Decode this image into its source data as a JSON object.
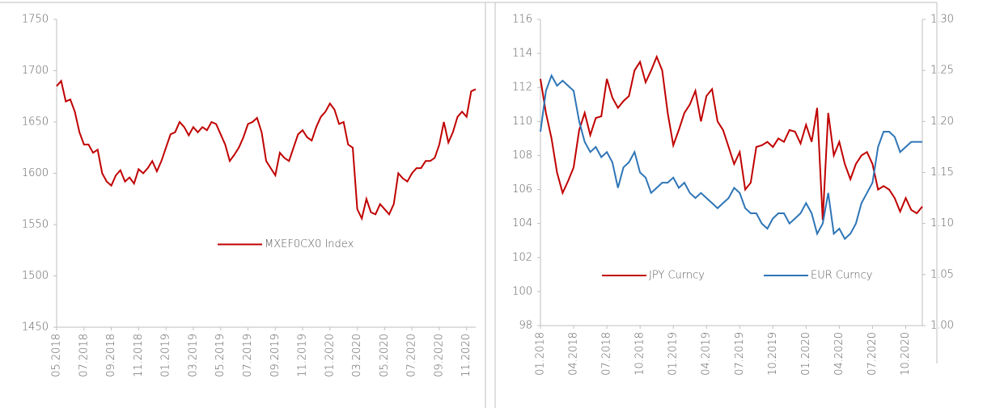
{
  "chart_data": [
    {
      "type": "line",
      "categories": [
        "05.2018",
        null,
        null,
        null,
        null,
        null,
        "07.2018",
        null,
        null,
        null,
        null,
        null,
        "09.2018",
        null,
        null,
        null,
        null,
        null,
        "11.2018",
        null,
        null,
        null,
        null,
        null,
        "01.2019",
        null,
        null,
        null,
        null,
        null,
        "03.2019",
        null,
        null,
        null,
        null,
        null,
        "05.2019",
        null,
        null,
        null,
        null,
        null,
        "07.2019",
        null,
        null,
        null,
        null,
        null,
        "09.2019",
        null,
        null,
        null,
        null,
        null,
        "11.2019",
        null,
        null,
        null,
        null,
        null,
        "01.2020",
        null,
        null,
        null,
        null,
        null,
        "03.2020",
        null,
        null,
        null,
        null,
        null,
        "05.2020",
        null,
        null,
        null,
        null,
        null,
        "07.2020",
        null,
        null,
        null,
        null,
        null,
        "09.2020",
        null,
        null,
        null,
        null,
        null,
        "11.2020",
        null,
        null
      ],
      "series": [
        {
          "name": "MXEF0CX0 Index",
          "color": "#c00000",
          "values": [
            1685,
            1690,
            1670,
            1672,
            1660,
            1640,
            1628,
            1628,
            1620,
            1623,
            1600,
            1592,
            1588,
            1598,
            1603,
            1592,
            1596,
            1590,
            1604,
            1600,
            1605,
            1612,
            1602,
            1612,
            1625,
            1638,
            1640,
            1650,
            1645,
            1637,
            1645,
            1640,
            1645,
            1642,
            1650,
            1648,
            1638,
            1628,
            1612,
            1618,
            1625,
            1635,
            1648,
            1650,
            1654,
            1640,
            1612,
            1605,
            1598,
            1620,
            1615,
            1612,
            1625,
            1638,
            1642,
            1635,
            1632,
            1645,
            1655,
            1660,
            1668,
            1662,
            1648,
            1650,
            1628,
            1625,
            1565,
            1556,
            1575,
            1562,
            1560,
            1570,
            1565,
            1560,
            1570,
            1600,
            1595,
            1592,
            1600,
            1605,
            1605,
            1612,
            1612,
            1615,
            1628,
            1650,
            1630,
            1640,
            1655,
            1660,
            1655,
            1680,
            1682
          ]
        }
      ],
      "ylim": [
        1450,
        1750
      ],
      "yticks": [
        1450,
        1500,
        1550,
        1600,
        1650,
        1700,
        1750
      ],
      "legend": "center"
    },
    {
      "type": "line",
      "categories": [
        "01.2018",
        null,
        null,
        null,
        null,
        null,
        "04.2018",
        null,
        null,
        null,
        null,
        null,
        "07.2018",
        null,
        null,
        null,
        null,
        null,
        "10.2018",
        null,
        null,
        null,
        null,
        null,
        "01.2019",
        null,
        null,
        null,
        null,
        null,
        "04.2019",
        null,
        null,
        null,
        null,
        null,
        "07.2019",
        null,
        null,
        null,
        null,
        null,
        "10.2019",
        null,
        null,
        null,
        null,
        null,
        "01.2020",
        null,
        null,
        null,
        null,
        null,
        "04.2020",
        null,
        null,
        null,
        null,
        null,
        "07.2020",
        null,
        null,
        null,
        null,
        null,
        "10.2020",
        null,
        null,
        null
      ],
      "series": [
        {
          "name": "JPY Curncy",
          "color": "#c00000",
          "axis": "y",
          "values": [
            112.5,
            110.5,
            109,
            107,
            105.8,
            106.5,
            107.3,
            109.5,
            110.5,
            109.2,
            110.2,
            110.3,
            112.5,
            111.4,
            110.8,
            111.2,
            111.5,
            113,
            113.5,
            112.3,
            113,
            113.8,
            113,
            110.5,
            108.6,
            109.5,
            110.5,
            111,
            111.8,
            110,
            111.5,
            111.9,
            110,
            109.5,
            108.5,
            107.5,
            108.2,
            106,
            106.4,
            108.5,
            108.6,
            108.8,
            108.5,
            109,
            108.8,
            109.5,
            109.4,
            108.7,
            109.8,
            108.8,
            110.8,
            104.2,
            110.5,
            108,
            108.8,
            107.5,
            106.6,
            107.5,
            108,
            108.2,
            107.5,
            106,
            106.2,
            106,
            105.5,
            104.7,
            105.5,
            104.8,
            104.6,
            105
          ]
        },
        {
          "name": "EUR Curncy",
          "color": "#2e75b6",
          "axis": "y2",
          "values": [
            1.19,
            1.23,
            1.245,
            1.235,
            1.24,
            1.235,
            1.23,
            1.2,
            1.18,
            1.17,
            1.175,
            1.165,
            1.17,
            1.16,
            1.135,
            1.155,
            1.16,
            1.17,
            1.15,
            1.145,
            1.13,
            1.135,
            1.14,
            1.14,
            1.145,
            1.135,
            1.14,
            1.13,
            1.125,
            1.13,
            1.125,
            1.12,
            1.115,
            1.12,
            1.125,
            1.135,
            1.13,
            1.115,
            1.11,
            1.11,
            1.1,
            1.095,
            1.105,
            1.11,
            1.11,
            1.1,
            1.105,
            1.11,
            1.12,
            1.11,
            1.09,
            1.1,
            1.13,
            1.09,
            1.095,
            1.085,
            1.09,
            1.1,
            1.12,
            1.13,
            1.14,
            1.175,
            1.19,
            1.19,
            1.185,
            1.17,
            1.175,
            1.18,
            1.18,
            1.18
          ]
        }
      ],
      "ylim": [
        98,
        116
      ],
      "yticks": [
        98,
        100,
        102,
        104,
        106,
        108,
        110,
        112,
        114,
        116
      ],
      "y2lim": [
        1.0,
        1.3
      ],
      "y2ticks": [
        {
          "value": 1,
          "label": "1.00"
        },
        1.05,
        {
          "value": 1.1,
          "label": "1.10"
        },
        1.15,
        {
          "value": 1.2,
          "label": "1.20"
        },
        1.25,
        {
          "value": 1.3,
          "label": "1.30"
        }
      ],
      "legend": "bottom"
    }
  ]
}
